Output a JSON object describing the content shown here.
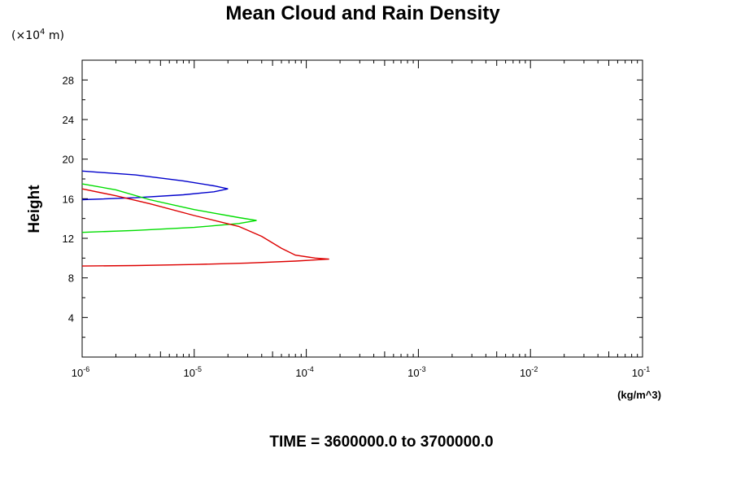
{
  "chart_data": {
    "type": "line",
    "title": "Mean Cloud and Rain Density",
    "y_unit": "(×10",
    "y_unit_exp": "4",
    "y_unit_suffix": " m)",
    "ylabel": "Height",
    "x_unit": "(kg/m^3)",
    "footer": "TIME = 3600000.0 to 3700000.0",
    "x_scale": "log",
    "xlim": [
      1e-06,
      0.1
    ],
    "ylim": [
      0,
      30
    ],
    "x_ticks": [
      {
        "base": "10",
        "exp": "-6"
      },
      {
        "base": "10",
        "exp": "-5"
      },
      {
        "base": "10",
        "exp": "-4"
      },
      {
        "base": "10",
        "exp": "-3"
      },
      {
        "base": "10",
        "exp": "-2"
      },
      {
        "base": "10",
        "exp": "-1"
      }
    ],
    "y_ticks": [
      4,
      8,
      12,
      16,
      20,
      24,
      28
    ],
    "grid": false,
    "series": [
      {
        "color": "#0000cc",
        "points": [
          [
            1e-06,
            18.8
          ],
          [
            3e-06,
            18.4
          ],
          [
            8e-06,
            17.8
          ],
          [
            1.5e-05,
            17.3
          ],
          [
            2e-05,
            17.0
          ],
          [
            1.5e-05,
            16.7
          ],
          [
            8e-06,
            16.4
          ],
          [
            3e-06,
            16.1
          ],
          [
            1e-06,
            15.9
          ]
        ]
      },
      {
        "color": "#00dd00",
        "points": [
          [
            1e-06,
            17.5
          ],
          [
            2e-06,
            16.9
          ],
          [
            4e-06,
            15.9
          ],
          [
            1e-05,
            14.9
          ],
          [
            2.5e-05,
            14.1
          ],
          [
            3.6e-05,
            13.8
          ],
          [
            2.5e-05,
            13.5
          ],
          [
            1e-05,
            13.1
          ],
          [
            3e-06,
            12.8
          ],
          [
            1e-06,
            12.6
          ]
        ]
      },
      {
        "color": "#dd0000",
        "points": [
          [
            1e-06,
            17.0
          ],
          [
            2e-06,
            16.3
          ],
          [
            4e-06,
            15.5
          ],
          [
            1e-05,
            14.3
          ],
          [
            2.5e-05,
            13.2
          ],
          [
            4e-05,
            12.2
          ],
          [
            6e-05,
            11.0
          ],
          [
            8e-05,
            10.3
          ],
          [
            0.00012,
            10.0
          ],
          [
            0.00016,
            9.9
          ],
          [
            8e-05,
            9.7
          ],
          [
            3e-05,
            9.5
          ],
          [
            1e-05,
            9.35
          ],
          [
            3e-06,
            9.25
          ],
          [
            1e-06,
            9.2
          ]
        ]
      }
    ]
  }
}
